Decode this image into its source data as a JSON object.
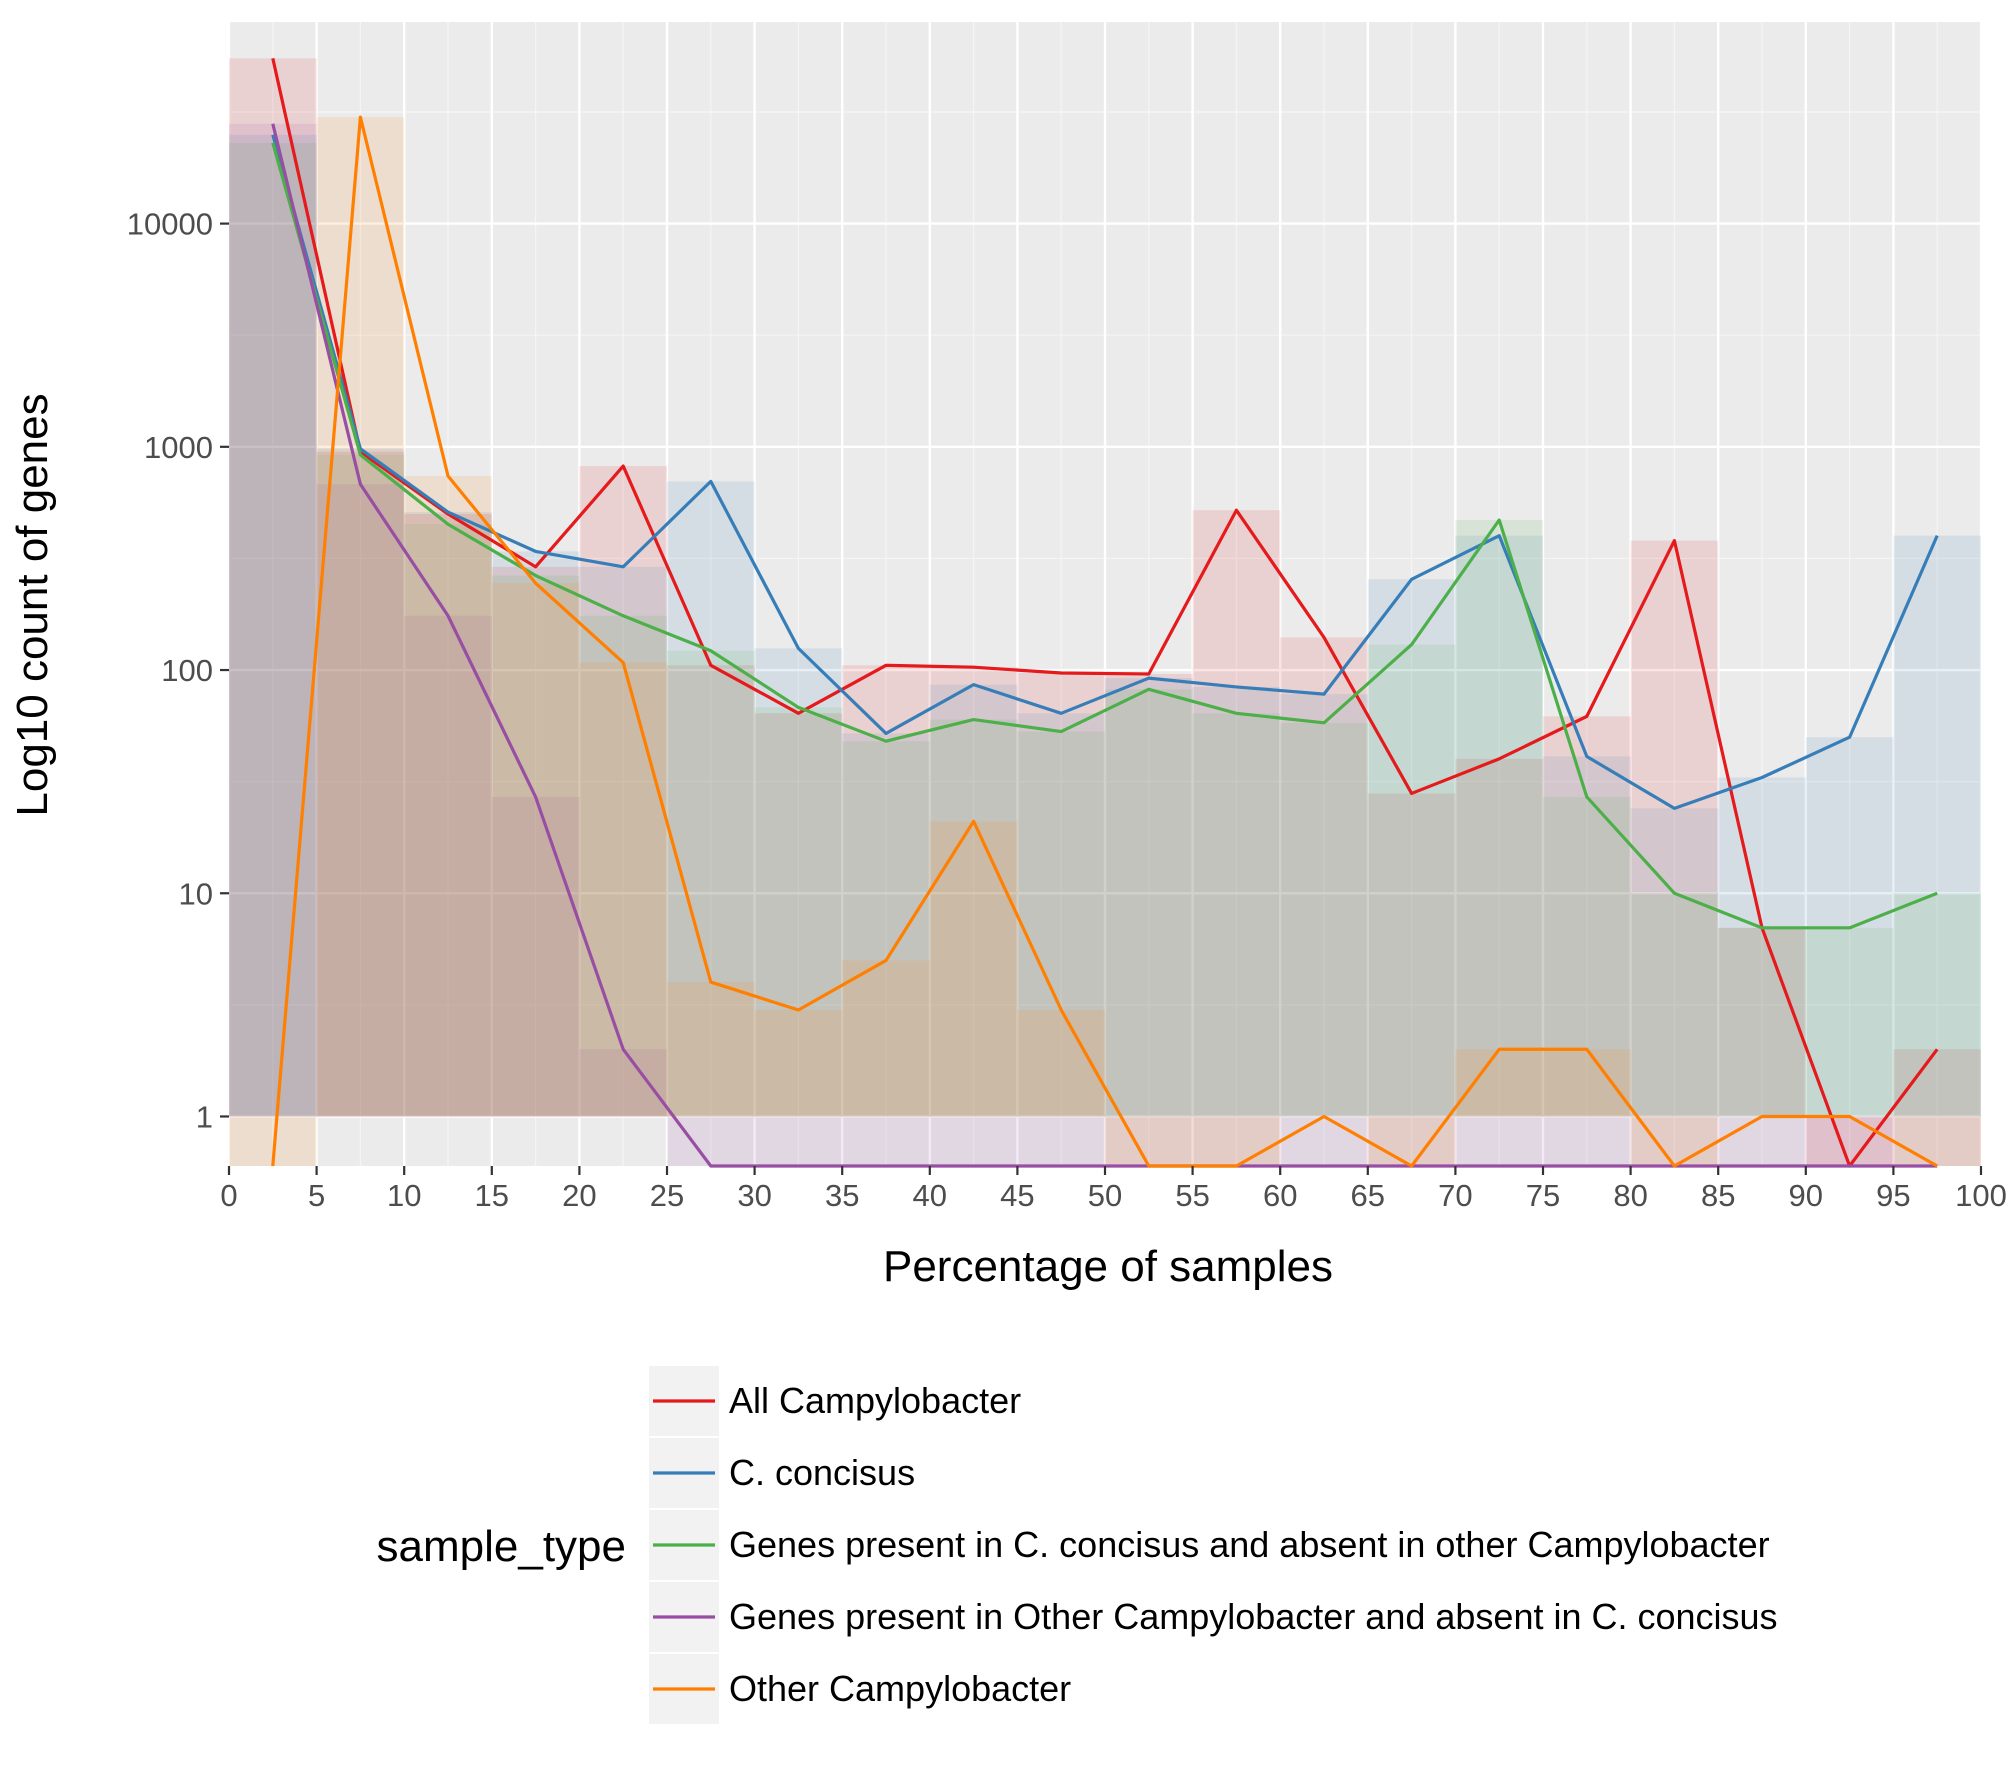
{
  "chart_data": {
    "type": "line",
    "title": "",
    "xlabel": "Percentage of samples",
    "ylabel": "Log10 count of genes",
    "x_scale": "linear",
    "y_scale": "log10",
    "xlim": [
      0,
      100
    ],
    "ylim": [
      0.6,
      80000
    ],
    "x_ticks": [
      0,
      5,
      10,
      15,
      20,
      25,
      30,
      35,
      40,
      45,
      50,
      55,
      60,
      65,
      70,
      75,
      80,
      85,
      90,
      95,
      100
    ],
    "y_ticks": [
      1,
      10,
      100,
      1000,
      10000
    ],
    "y_tick_labels": [
      "1",
      "10",
      "100",
      "1000",
      "10000"
    ],
    "x": [
      2.5,
      7.5,
      12.5,
      17.5,
      22.5,
      27.5,
      32.5,
      37.5,
      42.5,
      47.5,
      52.5,
      57.5,
      62.5,
      67.5,
      72.5,
      77.5,
      82.5,
      87.5,
      92.5,
      97.5
    ],
    "bin_width": 5,
    "grid": true,
    "panel_background": "#ebebeb",
    "legend": {
      "title": "sample_type",
      "position": "bottom"
    },
    "series": [
      {
        "name": "All Campylobacter",
        "color": "#e41a1c",
        "values": [
          55000,
          950,
          500,
          290,
          820,
          105,
          64,
          105,
          103,
          97,
          96,
          520,
          140,
          28,
          40,
          62,
          380,
          7,
          0.6,
          2
        ]
      },
      {
        "name": "C. concisus",
        "color": "#377eb8",
        "values": [
          25000,
          980,
          510,
          340,
          290,
          700,
          125,
          52,
          86,
          64,
          92,
          84,
          78,
          255,
          400,
          41,
          24,
          33,
          50,
          400
        ]
      },
      {
        "name": "Genes present in C. concisus and absent in other Campylobacter",
        "color": "#4daf4a",
        "values": [
          23000,
          920,
          450,
          265,
          175,
          122,
          68,
          48,
          60,
          53,
          82,
          64,
          58,
          130,
          470,
          27,
          10,
          7,
          7,
          10
        ]
      },
      {
        "name": "Genes present in Other Campylobacter and absent in C. concisus",
        "color": "#984ea3",
        "values": [
          28000,
          680,
          175,
          27,
          2,
          0.6,
          0.6,
          0.6,
          0.6,
          0.6,
          0.6,
          0.6,
          0.6,
          0.6,
          0.6,
          0.6,
          0.6,
          0.6,
          0.6,
          0.6
        ]
      },
      {
        "name": "Other Campylobacter",
        "color": "#ff7f00",
        "values": [
          0.6,
          30000,
          740,
          245,
          108,
          4,
          3,
          5,
          21,
          3,
          0.6,
          0.6,
          1,
          0.6,
          2,
          2,
          0.6,
          1,
          1,
          0.6
        ]
      }
    ]
  }
}
